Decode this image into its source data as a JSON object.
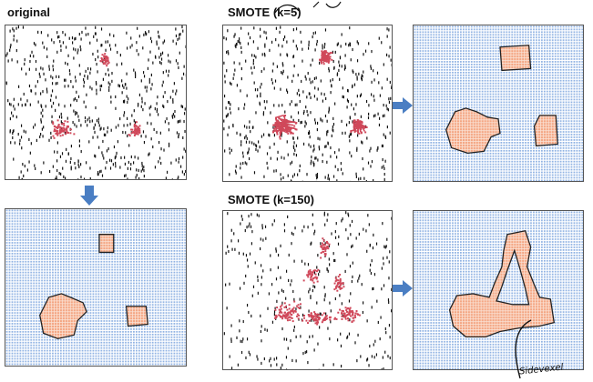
{
  "labels": {
    "original": "original",
    "smote_k5": "SMOTE (k=5)",
    "smote_k150": "SMOTE (k=150)",
    "handwritten_note": "Sidevexel"
  },
  "colors": {
    "majority_points": "#111111",
    "minority_points": "#d0485a",
    "decision_majority": "#8fb2e3",
    "decision_minority": "#f4a683",
    "arrow": "#4a7ec3"
  },
  "panels": [
    {
      "id": "original-data",
      "kind": "points",
      "minority_clusters": 3
    },
    {
      "id": "smote-k5-data",
      "kind": "points",
      "minority_clusters": 3
    },
    {
      "id": "smote-k5-decision",
      "kind": "decision-regions"
    },
    {
      "id": "original-decision",
      "kind": "decision-regions"
    },
    {
      "id": "smote-k150-data",
      "kind": "points",
      "shape": "triangle"
    },
    {
      "id": "smote-k150-decision",
      "kind": "decision-regions",
      "shape": "triangle"
    }
  ]
}
